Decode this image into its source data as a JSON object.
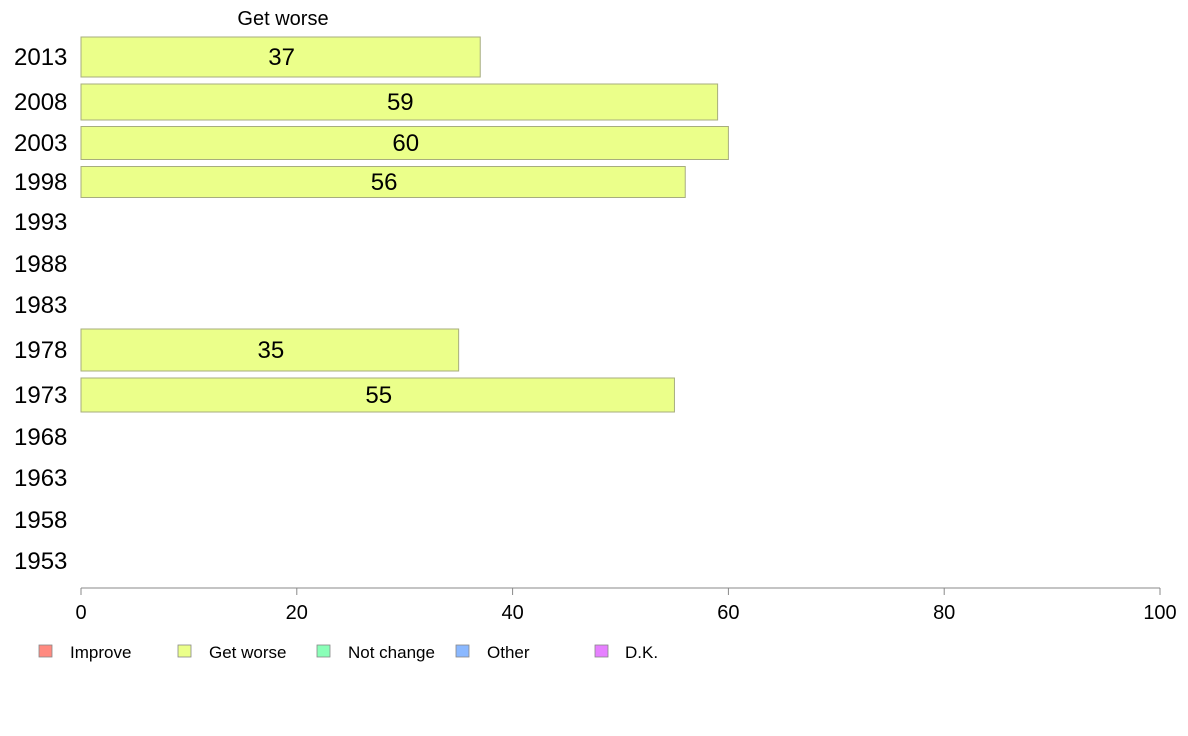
{
  "chart_data": {
    "type": "bar",
    "orientation": "horizontal",
    "title": "",
    "series_title": "Get worse",
    "categories": [
      "2013",
      "2008",
      "2003",
      "1998",
      "1993",
      "1988",
      "1983",
      "1978",
      "1973",
      "1968",
      "1963",
      "1958",
      "1953"
    ],
    "series": [
      {
        "name": "Get worse",
        "color": "#ebff8a",
        "values": [
          37,
          59,
          60,
          56,
          null,
          null,
          null,
          35,
          55,
          null,
          null,
          null,
          null
        ]
      }
    ],
    "xlim": [
      0,
      100
    ],
    "xticks": [
      0,
      20,
      40,
      60,
      80,
      100
    ],
    "grid": false,
    "legend_position": "bottom-left",
    "legend": [
      {
        "label": "Improve",
        "color": "#ff8a80"
      },
      {
        "label": "Get worse",
        "color": "#ebff8a"
      },
      {
        "label": "Not change",
        "color": "#8affb8"
      },
      {
        "label": "Other",
        "color": "#8ab8ff"
      },
      {
        "label": "D.K.",
        "color": "#e680ff"
      }
    ],
    "bar_border_color": "#a7ad7e",
    "axis_color": "#888888"
  }
}
